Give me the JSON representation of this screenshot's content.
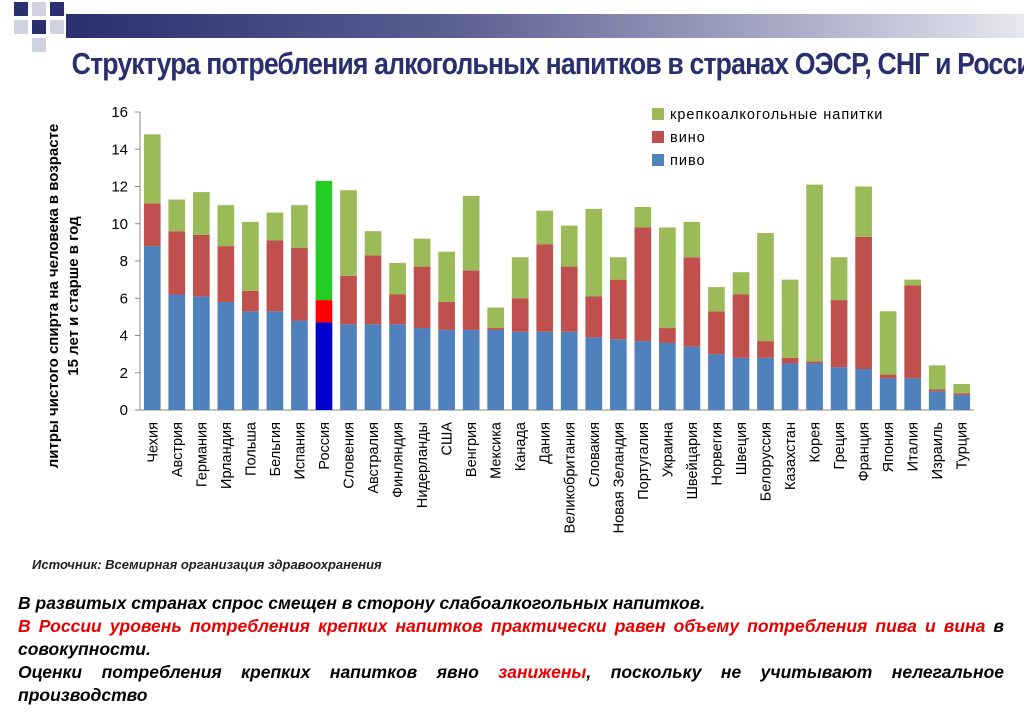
{
  "slide": {
    "title": "Структура потребления алкогольных напитков в странах ОЭСР, СНГ и России",
    "source": "Источник: Всемирная организация здравоохранения",
    "note1": "В развитых странах спрос смещен в сторону слабоалкогольных напитков.",
    "note2_red": "В России уровень потребления крепких напитков практически равен объему потребления пива и вина",
    "note2_rest": " в совокупности.",
    "note3_a": "Оценки потребления крепких напитков явно ",
    "note3_red": "занижены",
    "note3_b": ", поскольку не учитывают нелегальное производство"
  },
  "colors": {
    "beer": "#4f81bd",
    "wine": "#c0504d",
    "spirits": "#9bbb59",
    "russia_beer": "#0000cc",
    "russia_wine": "#ff0000",
    "russia_spirits": "#22cc22",
    "title": "#2a2f6e"
  },
  "chart_data": {
    "type": "bar",
    "stacked": true,
    "ylabel": "литры чистого спирта на человека в возрасте 15 лет и старше в год",
    "ylim": [
      0,
      16
    ],
    "yticks": [
      0,
      2,
      4,
      6,
      8,
      10,
      12,
      14,
      16
    ],
    "legend_position": "top-right",
    "highlight_category": "Россия",
    "categories": [
      "Чехия",
      "Австрия",
      "Германия",
      "Ирландия",
      "Польша",
      "Бельгия",
      "Испания",
      "Россия",
      "Словения",
      "Австралия",
      "Финляндия",
      "Нидерланды",
      "США",
      "Венгрия",
      "Мексика",
      "Канада",
      "Дания",
      "Великобритания",
      "Словакия",
      "Новая Зеландия",
      "Португалия",
      "Украина",
      "Швейцария",
      "Норвегия",
      "Швеция",
      "Белоруссия",
      "Казахстан",
      "Корея",
      "Греция",
      "Франция",
      "Япония",
      "Италия",
      "Израиль",
      "Турция"
    ],
    "series": [
      {
        "name": "пиво",
        "key": "beer",
        "values": [
          8.8,
          6.2,
          6.1,
          5.8,
          5.3,
          5.3,
          4.8,
          4.7,
          4.6,
          4.6,
          4.6,
          4.4,
          4.3,
          4.3,
          4.3,
          4.2,
          4.2,
          4.2,
          3.9,
          3.8,
          3.7,
          3.6,
          3.4,
          3.0,
          2.8,
          2.8,
          2.5,
          2.5,
          2.3,
          2.2,
          1.7,
          1.7,
          1.0,
          0.8
        ]
      },
      {
        "name": "вино",
        "key": "wine",
        "values": [
          2.3,
          3.4,
          3.3,
          3.0,
          1.1,
          3.8,
          3.9,
          1.2,
          2.6,
          3.7,
          1.6,
          3.3,
          1.5,
          3.2,
          0.1,
          1.8,
          4.7,
          3.5,
          2.2,
          3.2,
          6.1,
          0.8,
          4.8,
          2.3,
          3.4,
          0.9,
          0.3,
          0.1,
          3.6,
          7.1,
          0.2,
          5.0,
          0.1,
          0.1
        ]
      },
      {
        "name": "крепкоалкогольные напитки",
        "key": "spirits",
        "values": [
          3.7,
          1.7,
          2.3,
          2.2,
          3.7,
          1.5,
          2.3,
          6.4,
          4.6,
          1.3,
          1.7,
          1.5,
          2.7,
          4.0,
          1.1,
          2.2,
          1.8,
          2.2,
          4.7,
          1.2,
          1.1,
          5.4,
          1.9,
          1.3,
          1.2,
          5.8,
          4.2,
          9.5,
          2.3,
          2.7,
          3.4,
          0.3,
          1.3,
          0.5
        ]
      }
    ],
    "legend_order": [
      "spirits",
      "wine",
      "beer"
    ]
  }
}
